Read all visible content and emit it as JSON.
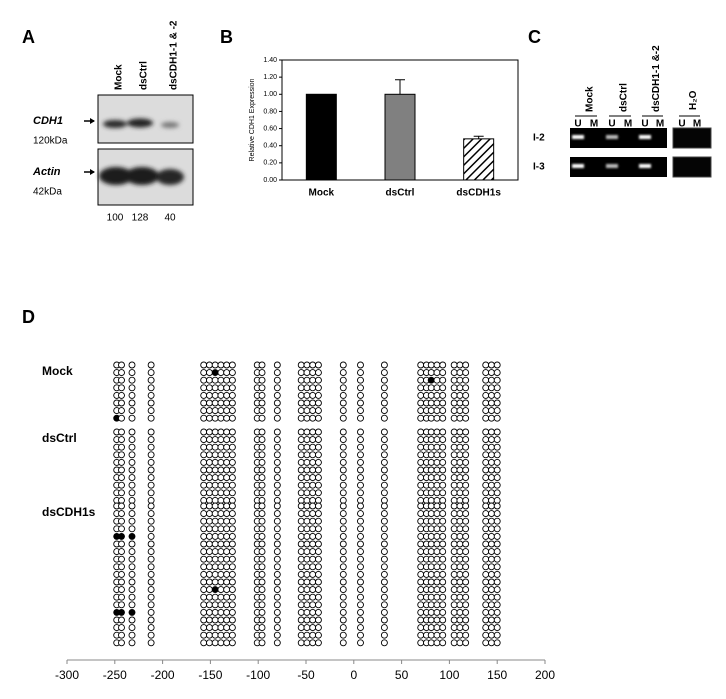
{
  "panel_a": {
    "label": "A",
    "lanes": [
      "Mock",
      "dsCtrl",
      "dsCDH1-1 & -2"
    ],
    "blots": [
      {
        "name": "CDH1",
        "size": "120kDa"
      },
      {
        "name": "Actin",
        "size": "42kDa"
      }
    ],
    "quantification": [
      100,
      128,
      40
    ]
  },
  "chart_data": [
    {
      "panel_label": "B",
      "type": "bar",
      "ylabel": "Relative CDH1 Expression",
      "categories": [
        "Mock",
        "dsCtrl",
        "dsCDH1s"
      ],
      "values": [
        1.0,
        1.0,
        0.48
      ],
      "errors": [
        null,
        0.17,
        0.03
      ],
      "colors": [
        "#000000",
        "#808080",
        "#ffffff"
      ],
      "hatch": [
        false,
        false,
        true
      ],
      "ylim": [
        0,
        1.4
      ],
      "yticks": [
        {
          "value": 0,
          "label": "0.00"
        },
        {
          "value": 0.2,
          "label": "0.20"
        },
        {
          "value": 0.4,
          "label": "0.40"
        },
        {
          "value": 0.6,
          "label": "0.60"
        },
        {
          "value": 0.8,
          "label": "0.80"
        },
        {
          "value": 1.0,
          "label": "1.00"
        },
        {
          "value": 1.2,
          "label": "1.20"
        },
        {
          "value": 1.4,
          "label": "1.40"
        }
      ]
    },
    {
      "panel_label": "D",
      "type": "methylation",
      "xlim": [
        -300,
        200
      ],
      "xticks": [
        -300,
        -250,
        -200,
        -150,
        -100,
        -50,
        0,
        50,
        100,
        150,
        200
      ],
      "cpg_sites": [
        -248,
        -243,
        -232,
        -212,
        -157,
        -151,
        -145,
        -139,
        -133,
        -127,
        -101,
        -96,
        -80,
        -55,
        -49,
        -43,
        -37,
        -11,
        7,
        32,
        70,
        76,
        81,
        87,
        93,
        105,
        111,
        117,
        138,
        144,
        150
      ],
      "series": [
        {
          "name": "Mock",
          "clones": 8,
          "methylated": [
            [
              1,
              6
            ],
            [
              2,
              22
            ],
            [
              7,
              0
            ]
          ]
        },
        {
          "name": "dsCtrl",
          "clones": 10,
          "methylated": []
        },
        {
          "name": "dsCDH1s",
          "clones": 19,
          "methylated": [
            [
              4,
              0
            ],
            [
              4,
              1
            ],
            [
              4,
              2
            ],
            [
              11,
              6
            ],
            [
              14,
              0
            ],
            [
              14,
              1
            ],
            [
              14,
              2
            ]
          ]
        }
      ]
    }
  ],
  "panel_c": {
    "label": "C",
    "lanes": [
      "Mock",
      "dsCtrl",
      "dsCDH1-1 &-2",
      "H₂O"
    ],
    "lane_columns": [
      "U",
      "M"
    ],
    "rows": [
      "I-2",
      "I-3"
    ]
  }
}
